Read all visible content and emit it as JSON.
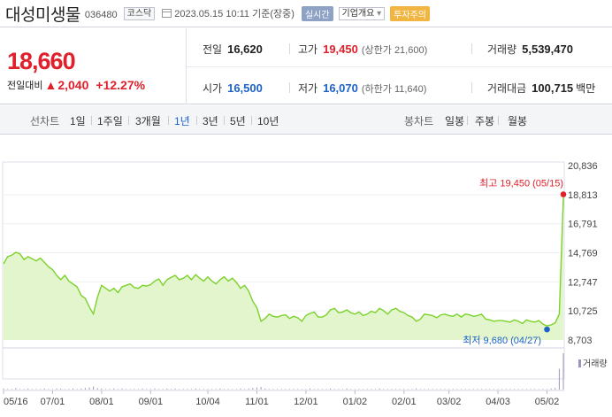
{
  "stock": {
    "name": "대성미생물",
    "code": "036480",
    "market": "코스닥",
    "datetime": "2023.05.15 10:11",
    "basis": "기준(장중)",
    "btn_realtime": "실시간",
    "btn_overview": "기업개요",
    "overview_arrow": "▾",
    "btn_warning": "투자주의"
  },
  "price": {
    "current": "18,660",
    "change_label": "전일대비",
    "change_amount": "2,040",
    "change_rate": "+12.27%"
  },
  "summary": {
    "prev_label": "전일",
    "prev_value": "16,620",
    "high_label": "고가",
    "high_value": "19,450",
    "upper_limit": "(상한가 21,600)",
    "volume_label": "거래량",
    "volume_value": "5,539,470",
    "open_label": "시가",
    "open_value": "16,500",
    "low_label": "저가",
    "low_value": "16,070",
    "lower_limit": "(하한가 11,640)",
    "amount_label": "거래대금",
    "amount_value": "100,715",
    "amount_unit": "백만"
  },
  "period_tabs": {
    "line_chart_label": "선차트",
    "line_items": [
      "1일",
      "1주일",
      "3개월",
      "1년",
      "3년",
      "5년",
      "10년"
    ],
    "active_item": "1년",
    "candle_chart_label": "봉차트",
    "candle_items": [
      "일봉",
      "주봉",
      "월봉"
    ]
  },
  "colors": {
    "up": "#e0202b",
    "down": "#1d62c7",
    "line": "#7bd22a",
    "fill": "#e3f5cd"
  },
  "chart_data": {
    "type": "area",
    "y_ticks": [
      "20,836",
      "18,813",
      "16,791",
      "14,769",
      "12,747",
      "10,725",
      "8,703"
    ],
    "ylim": [
      8703,
      20836
    ],
    "x_ticks": [
      "05/16",
      "07/01",
      "08/01",
      "09/01",
      "10/04",
      "11/01",
      "12/01",
      "01/02",
      "02/01",
      "03/02",
      "04/03",
      "05/02"
    ],
    "volume_label": "거래량",
    "max_annotation": "최고 19,450 (05/15)",
    "min_annotation": "최저 9,680 (04/27)",
    "series": [
      {
        "values": [
          14000,
          14500,
          14600,
          14800,
          14700,
          14300,
          14500,
          14350,
          14200,
          14400,
          14100,
          13800,
          13600,
          13200,
          12900,
          13200,
          12800,
          12600,
          12400,
          11800,
          11600,
          11000,
          10500,
          11700,
          12500,
          12300,
          12100,
          12300,
          12000,
          12400,
          12500,
          12600,
          12350,
          12300,
          12500,
          12450,
          12550,
          12800,
          12950,
          12500,
          12900,
          13050,
          13200,
          12900,
          13000,
          13200,
          12900,
          13250,
          13000,
          12800,
          13100,
          12800,
          12600,
          12900,
          13100,
          12800,
          13000,
          12700,
          12300,
          12500,
          12100,
          11400,
          10950,
          10000,
          10200,
          10500,
          10350,
          10300,
          10400,
          10450,
          10200,
          10350,
          10250,
          10000,
          10400,
          10550,
          10650,
          10300,
          10300,
          10450,
          10800,
          10900,
          10600,
          10650,
          10800,
          10600,
          10500,
          10650,
          10400,
          10500,
          10700,
          10600,
          10900,
          10750,
          10500,
          10800,
          10900,
          10700,
          10600,
          10400,
          10300,
          10000,
          10150,
          10500,
          10450,
          10400,
          10250,
          10450,
          10500,
          10400,
          10350,
          10500,
          10300,
          10500,
          10450,
          10350,
          10400,
          10500,
          10150,
          10100,
          10000,
          10050,
          10050,
          10000,
          9950,
          10100,
          10000,
          9850,
          10100,
          10000,
          9950,
          10050,
          9800,
          9680,
          9750,
          9900,
          10500,
          18660
        ],
        "volumes": [
          2,
          1,
          1,
          3,
          1,
          1,
          2,
          1,
          1,
          1,
          2,
          1,
          1,
          2,
          2,
          1,
          1,
          2,
          1,
          2,
          3,
          4,
          6,
          3,
          2,
          1,
          1,
          2,
          1,
          2,
          1,
          1,
          1,
          1,
          2,
          1,
          1,
          2,
          1,
          1,
          2,
          1,
          2,
          1,
          1,
          1,
          1,
          2,
          1,
          1,
          1,
          1,
          1,
          2,
          1,
          1,
          1,
          1,
          2,
          1,
          2,
          3,
          4,
          5,
          2,
          1,
          1,
          1,
          1,
          1,
          1,
          1,
          1,
          1,
          1,
          2,
          1,
          1,
          1,
          1,
          2,
          1,
          1,
          1,
          2,
          1,
          1,
          1,
          1,
          1,
          1,
          1,
          2,
          1,
          1,
          1,
          1,
          1,
          1,
          1,
          1,
          2,
          1,
          1,
          1,
          1,
          1,
          1,
          1,
          1,
          1,
          1,
          1,
          1,
          1,
          1,
          1,
          1,
          1,
          1,
          1,
          1,
          1,
          1,
          1,
          1,
          1,
          1,
          1,
          1,
          1,
          1,
          1,
          1,
          2,
          3,
          40,
          70
        ]
      }
    ]
  }
}
